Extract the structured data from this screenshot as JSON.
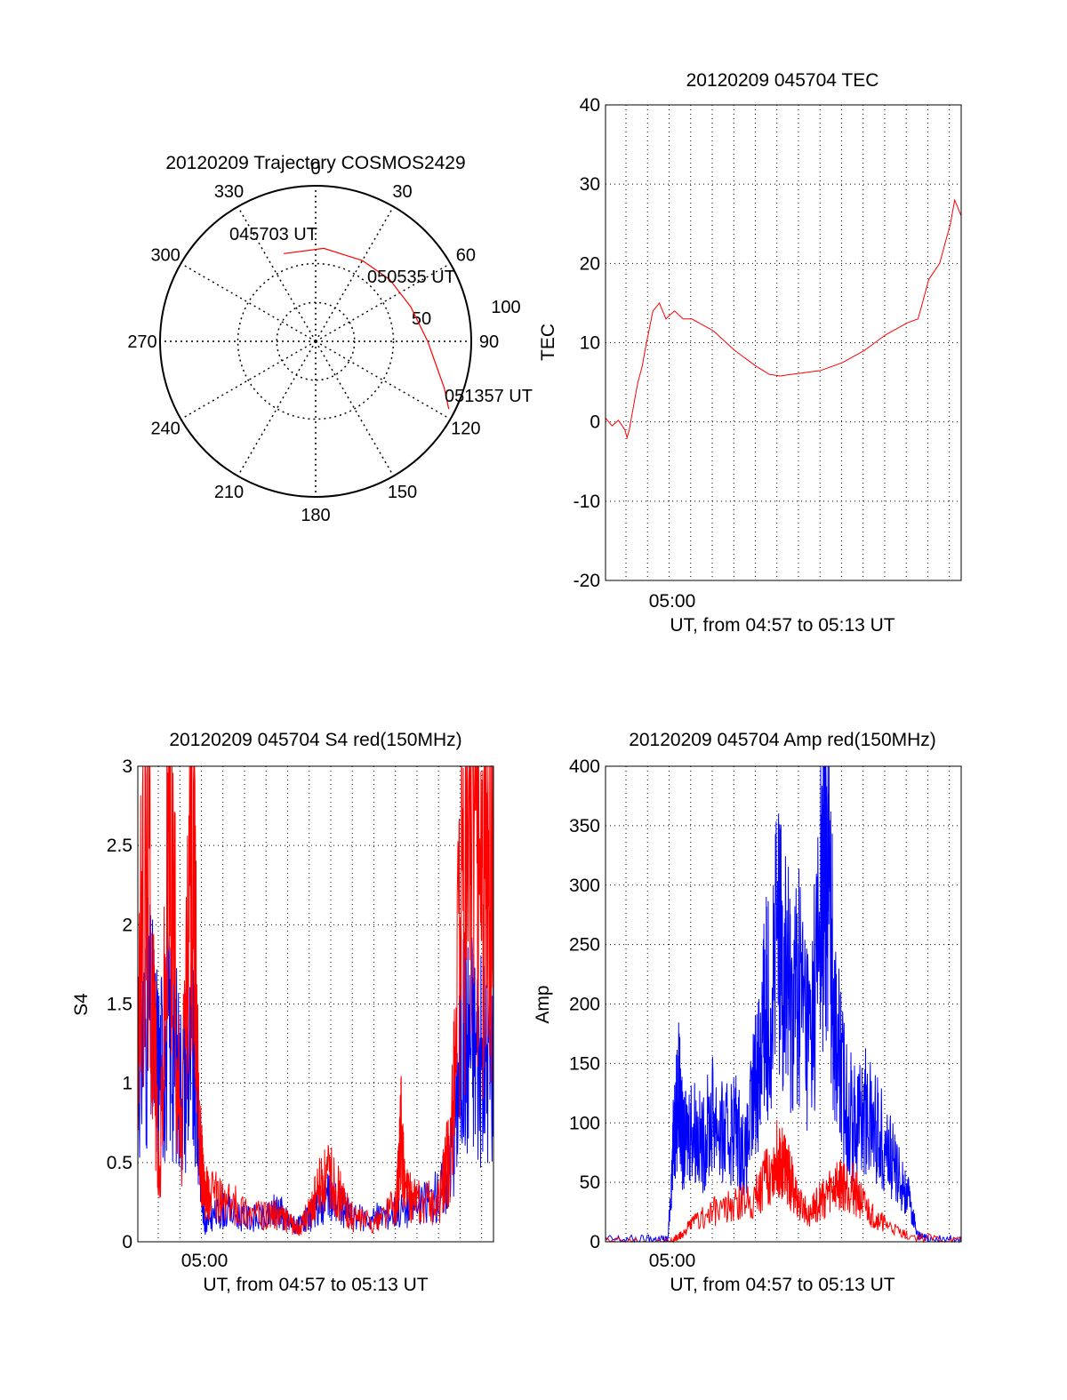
{
  "chart_data": [
    {
      "type": "polar",
      "title": "20120209 Trajectory COSMOS2429",
      "azimuth_ticks": [
        "0",
        "30",
        "60",
        "90",
        "120",
        "150",
        "180",
        "210",
        "240",
        "270",
        "300",
        "330"
      ],
      "elevation_ticks": [
        "50",
        "100"
      ],
      "r_max": 100,
      "series": [
        {
          "color": "#ff0000",
          "azimuth": [
            340,
            5,
            30,
            50,
            70,
            90,
            110,
            117
          ],
          "r": [
            60,
            60,
            60,
            62,
            65,
            72,
            88,
            96
          ]
        }
      ],
      "annotations": [
        "045703 UT",
        "050535 UT",
        "051357 UT"
      ]
    },
    {
      "type": "line",
      "title": "20120209 045704 TEC",
      "xlabel": "UT, from 04:57 to 05:13 UT",
      "ylabel": "TEC",
      "x_tick_label": "05:00",
      "x_tick_at": 2.95,
      "xlim": [
        0,
        16.5
      ],
      "ylim": [
        -20,
        40
      ],
      "y_ticks": [
        "-20",
        "-10",
        "0",
        "10",
        "20",
        "30",
        "40"
      ],
      "grid": true,
      "series": [
        {
          "color": "#ff0000",
          "x": [
            0,
            0.3,
            0.6,
            0.9,
            1.0,
            1.1,
            1.3,
            1.5,
            1.7,
            1.9,
            2.2,
            2.5,
            2.8,
            3.2,
            3.6,
            4.0,
            5.0,
            6.0,
            7.0,
            7.6,
            8.1,
            8.6,
            9.2,
            10.0,
            11.0,
            12.0,
            12.5,
            13.0,
            14.0,
            14.5,
            14.8,
            15.0,
            15.5,
            16.0,
            16.2,
            16.5
          ],
          "y": [
            0.5,
            -0.5,
            0.2,
            -1.0,
            -2.0,
            -1.0,
            2.0,
            5.0,
            7.0,
            10.0,
            14.0,
            15.0,
            13.0,
            14.0,
            13.0,
            13.0,
            11.5,
            9.0,
            7.0,
            6.0,
            5.8,
            6.0,
            6.2,
            6.5,
            7.5,
            9.0,
            10.0,
            11.0,
            12.5,
            13.0,
            16.0,
            18.0,
            20.0,
            25.0,
            28.0,
            26.0
          ]
        }
      ]
    },
    {
      "type": "line",
      "title": "20120209 045704 S4 red(150MHz)",
      "xlabel": "UT, from 04:57 to 05:13 UT",
      "ylabel": "S4",
      "x_tick_label": "05:00",
      "x_tick_at": 2.95,
      "xlim": [
        0,
        16.5
      ],
      "ylim": [
        0,
        3
      ],
      "y_ticks": [
        "0",
        "0.5",
        "1",
        "1.5",
        "2",
        "2.5",
        "3"
      ],
      "grid": true,
      "series": [
        {
          "color": "#0000ff",
          "x": [
            0,
            0.5,
            1.0,
            1.5,
            2.0,
            2.5,
            2.9,
            3.1,
            3.3,
            4.0,
            5.0,
            6.0,
            6.5,
            7.0,
            7.5,
            8.0,
            8.5,
            9.0,
            9.5,
            10.0,
            11.0,
            12.0,
            13.0,
            14.0,
            14.5,
            15.0,
            15.5,
            16.0,
            16.5
          ],
          "y": [
            1.2,
            1.4,
            1.1,
            1.3,
            1.0,
            1.2,
            0.6,
            0.1,
            0.15,
            0.2,
            0.15,
            0.15,
            0.22,
            0.12,
            0.1,
            0.15,
            0.25,
            0.28,
            0.22,
            0.15,
            0.15,
            0.2,
            0.22,
            0.3,
            0.5,
            1.2,
            1.3,
            1.1,
            1.2
          ]
        },
        {
          "color": "#ff0000",
          "x": [
            0,
            0.5,
            1.0,
            1.5,
            2.0,
            2.5,
            2.9,
            3.1,
            3.3,
            4.0,
            5.0,
            6.0,
            6.5,
            7.0,
            7.5,
            8.0,
            8.5,
            9.0,
            9.5,
            10.0,
            11.0,
            12.0,
            12.2,
            12.4,
            13.0,
            14.0,
            14.5,
            15.0,
            15.5,
            16.0,
            16.5
          ],
          "y": [
            1.5,
            2.5,
            0.3,
            2.8,
            0.5,
            2.6,
            0.6,
            0.3,
            0.3,
            0.25,
            0.2,
            0.15,
            0.18,
            0.12,
            0.08,
            0.2,
            0.35,
            0.4,
            0.25,
            0.15,
            0.12,
            0.25,
            0.7,
            0.3,
            0.25,
            0.25,
            0.6,
            2.0,
            2.8,
            2.2,
            2.5
          ]
        }
      ]
    },
    {
      "type": "line",
      "title": "20120209 045704 Amp red(150MHz)",
      "xlabel": "UT, from 04:57 to 05:13 UT",
      "ylabel": "Amp",
      "x_tick_label": "05:00",
      "x_tick_at": 2.95,
      "xlim": [
        0,
        16.5
      ],
      "ylim": [
        0,
        400
      ],
      "y_ticks": [
        "0",
        "50",
        "100",
        "150",
        "200",
        "250",
        "300",
        "350",
        "400"
      ],
      "grid": true,
      "series": [
        {
          "color": "#0000ff",
          "x": [
            0,
            2.0,
            2.9,
            3.2,
            3.4,
            3.6,
            4.0,
            4.5,
            5.0,
            5.5,
            6.0,
            6.5,
            7.0,
            7.3,
            7.5,
            8.0,
            8.3,
            8.6,
            9.0,
            9.5,
            10.0,
            10.3,
            10.6,
            11.0,
            11.5,
            12.0,
            12.5,
            13.0,
            13.5,
            14.0,
            14.5,
            15.0,
            16.5
          ],
          "y": [
            2,
            2,
            2,
            100,
            130,
            80,
            100,
            80,
            110,
            85,
            100,
            70,
            140,
            180,
            200,
            250,
            240,
            200,
            220,
            170,
            280,
            330,
            200,
            130,
            100,
            110,
            100,
            80,
            60,
            40,
            5,
            2,
            2
          ]
        },
        {
          "color": "#ff0000",
          "x": [
            0,
            3.0,
            3.5,
            4.0,
            5.0,
            6.0,
            7.0,
            7.5,
            8.0,
            8.3,
            8.6,
            9.0,
            9.5,
            10.0,
            10.5,
            11.0,
            11.5,
            12.0,
            12.5,
            13.0,
            14.0,
            16.5
          ],
          "y": [
            0,
            0,
            5,
            15,
            25,
            30,
            40,
            55,
            70,
            65,
            50,
            30,
            25,
            35,
            45,
            50,
            45,
            30,
            20,
            15,
            5,
            0
          ]
        }
      ]
    }
  ]
}
